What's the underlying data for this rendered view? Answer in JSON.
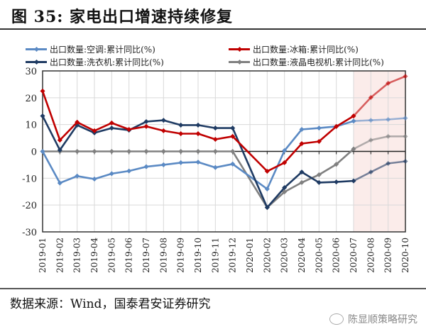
{
  "header": {
    "title": "图 35:  家电出口增速持续修复"
  },
  "footer": {
    "source": "数据来源：Wind，国泰君安证券研究",
    "watermark": "陈显顺策略研究"
  },
  "legend": [
    {
      "label": "出口数量:空调:累计同比(%)",
      "color": "#5b8ac4"
    },
    {
      "label": "出口数量:冰箱:累计同比(%)",
      "color": "#c00000"
    },
    {
      "label": "出口数量:洗衣机:累计同比(%)",
      "color": "#1f3b63"
    },
    {
      "label": "出口数量:液晶电视机:累计同比(%)",
      "color": "#808080"
    }
  ],
  "chart_data": {
    "type": "line",
    "title": "家电出口增速持续修复",
    "xlabel": "",
    "ylabel": "",
    "ylim": [
      -30,
      30
    ],
    "yticks": [
      30,
      20,
      10,
      0,
      -10,
      -20,
      -30
    ],
    "grid": true,
    "legend_position": "top",
    "highlight_region": {
      "from": "2020-07",
      "to": "2020-10",
      "color": "#fbecea"
    },
    "categories": [
      "2019-01",
      "2019-02",
      "2019-03",
      "2019-04",
      "2019-05",
      "2019-06",
      "2019-07",
      "2019-08",
      "2019-09",
      "2019-10",
      "2019-11",
      "2019-12",
      "2020-01",
      "2020-02",
      "2020-03",
      "2020-04",
      "2020-05",
      "2020-06",
      "2020-07",
      "2020-08",
      "2020-09",
      "2020-10"
    ],
    "series": [
      {
        "name": "出口数量:空调:累计同比(%)",
        "color": "#5b8ac4",
        "values": [
          0,
          -11.8,
          -9.2,
          -10.3,
          -8.3,
          -7.3,
          -5.7,
          -5.0,
          -4.2,
          -4.0,
          -6.0,
          -4.7,
          null,
          -14.0,
          0.3,
          8.2,
          8.7,
          9.3,
          11.3,
          11.6,
          11.9,
          12.4
        ]
      },
      {
        "name": "出口数量:冰箱:累计同比(%)",
        "color": "#c00000",
        "values": [
          22.5,
          4.2,
          10.9,
          7.7,
          10.6,
          8.2,
          9.3,
          7.7,
          6.6,
          6.6,
          4.5,
          5.6,
          null,
          -7.4,
          -4.2,
          2.9,
          3.7,
          9.3,
          13.2,
          20.1,
          25.4,
          28.0
        ]
      },
      {
        "name": "出口数量:洗衣机:累计同比(%)",
        "color": "#1f3b63",
        "values": [
          13.2,
          0.5,
          9.8,
          6.9,
          8.7,
          7.9,
          11.1,
          11.6,
          9.8,
          9.8,
          8.7,
          8.7,
          null,
          -20.9,
          -13.5,
          -7.7,
          -11.6,
          -11.4,
          -11.0,
          -7.7,
          -4.5,
          -3.7
        ]
      },
      {
        "name": "出口数量:液晶电视机:累计同比(%)",
        "color": "#808080",
        "values": [
          0,
          0,
          0,
          0,
          0,
          0,
          0,
          0,
          0,
          0,
          0,
          0,
          null,
          -20.9,
          -15.1,
          -11.6,
          -8.7,
          -4.8,
          0.9,
          4.2,
          5.6,
          5.6
        ]
      }
    ]
  }
}
